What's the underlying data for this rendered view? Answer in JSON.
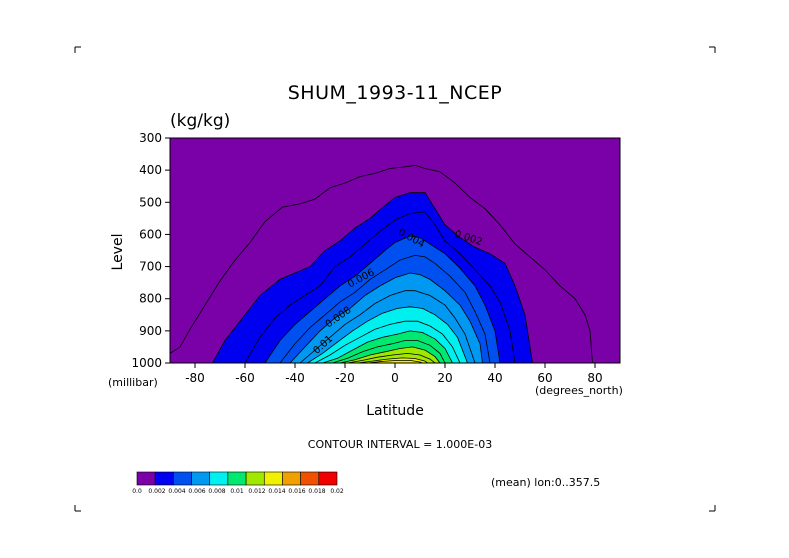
{
  "chart_data": {
    "type": "contour",
    "title": "SHUM_1993-11_NCEP",
    "units": "(kg/kg)",
    "xlabel": "Latitude",
    "ylabel": "Level",
    "x_unit_label": "(degrees_north)",
    "y_unit_label": "(millibar)",
    "xlim": [
      -90,
      90
    ],
    "ylim": [
      1000,
      300
    ],
    "x_ticks": [
      -80,
      -60,
      -40,
      -20,
      0,
      20,
      40,
      60,
      80
    ],
    "y_ticks": [
      300,
      400,
      500,
      600,
      700,
      800,
      900,
      1000
    ],
    "contour_interval_text": "CONTOUR INTERVAL = 1.000E-03",
    "mean_text": "(mean) lon:0..357.5",
    "colorbar": {
      "labels": [
        "0.0",
        "0.002",
        "0.004",
        "0.006",
        "0.008",
        "0.01",
        "0.012",
        "0.014",
        "0.016",
        "0.018",
        "0.02"
      ],
      "colors": [
        "#7a00a8",
        "#0000f0",
        "#0050f0",
        "#0098f0",
        "#00f0f0",
        "#00e870",
        "#a0e800",
        "#f0f000",
        "#f0a000",
        "#f05000",
        "#f00000"
      ]
    },
    "contour_labels": [
      "0.002",
      "0.004",
      "0.006",
      "0.008",
      "0.01"
    ],
    "contours": [
      {
        "level": 0.001,
        "points": [
          [
            -90,
            970
          ],
          [
            -86,
            950
          ],
          [
            -82,
            895
          ],
          [
            -76,
            820
          ],
          [
            -70,
            745
          ],
          [
            -64,
            680
          ],
          [
            -58,
            625
          ],
          [
            -52,
            560
          ],
          [
            -45,
            515
          ],
          [
            -38,
            505
          ],
          [
            -32,
            490
          ],
          [
            -26,
            455
          ],
          [
            -20,
            440
          ],
          [
            -14,
            420
          ],
          [
            -8,
            410
          ],
          [
            -2,
            395
          ],
          [
            4,
            390
          ],
          [
            8,
            385
          ],
          [
            12,
            395
          ],
          [
            18,
            405
          ],
          [
            24,
            440
          ],
          [
            30,
            485
          ],
          [
            36,
            520
          ],
          [
            42,
            570
          ],
          [
            48,
            630
          ],
          [
            54,
            670
          ],
          [
            60,
            710
          ],
          [
            66,
            760
          ],
          [
            72,
            800
          ],
          [
            76,
            850
          ],
          [
            78,
            900
          ],
          [
            79,
            1000
          ]
        ]
      },
      {
        "level": 0.002,
        "points": [
          [
            -73,
            1000
          ],
          [
            -68,
            930
          ],
          [
            -60,
            850
          ],
          [
            -54,
            790
          ],
          [
            -46,
            740
          ],
          [
            -40,
            720
          ],
          [
            -34,
            700
          ],
          [
            -28,
            650
          ],
          [
            -22,
            620
          ],
          [
            -16,
            580
          ],
          [
            -10,
            550
          ],
          [
            -4,
            510
          ],
          [
            0,
            485
          ],
          [
            6,
            470
          ],
          [
            12,
            470
          ],
          [
            16,
            520
          ],
          [
            20,
            570
          ],
          [
            26,
            610
          ],
          [
            32,
            640
          ],
          [
            38,
            660
          ],
          [
            44,
            690
          ],
          [
            48,
            760
          ],
          [
            52,
            850
          ],
          [
            54,
            950
          ],
          [
            55,
            1000
          ]
        ]
      },
      {
        "level": 0.003,
        "points": [
          [
            -60,
            1000
          ],
          [
            -54,
            920
          ],
          [
            -48,
            860
          ],
          [
            -42,
            820
          ],
          [
            -36,
            790
          ],
          [
            -30,
            760
          ],
          [
            -24,
            700
          ],
          [
            -18,
            670
          ],
          [
            -12,
            630
          ],
          [
            -6,
            590
          ],
          [
            0,
            555
          ],
          [
            6,
            535
          ],
          [
            12,
            530
          ],
          [
            16,
            570
          ],
          [
            20,
            620
          ],
          [
            26,
            660
          ],
          [
            32,
            710
          ],
          [
            38,
            760
          ],
          [
            42,
            810
          ],
          [
            46,
            900
          ],
          [
            48,
            1000
          ]
        ]
      },
      {
        "level": 0.004,
        "points": [
          [
            -52,
            1000
          ],
          [
            -46,
            930
          ],
          [
            -40,
            880
          ],
          [
            -34,
            840
          ],
          [
            -28,
            800
          ],
          [
            -22,
            760
          ],
          [
            -16,
            730
          ],
          [
            -10,
            690
          ],
          [
            -4,
            650
          ],
          [
            0,
            625
          ],
          [
            6,
            605
          ],
          [
            10,
            610
          ],
          [
            14,
            630
          ],
          [
            20,
            660
          ],
          [
            26,
            705
          ],
          [
            32,
            760
          ],
          [
            36,
            820
          ],
          [
            40,
            900
          ],
          [
            42,
            1000
          ]
        ]
      },
      {
        "level": 0.005,
        "points": [
          [
            -46,
            1000
          ],
          [
            -40,
            940
          ],
          [
            -34,
            890
          ],
          [
            -28,
            850
          ],
          [
            -22,
            810
          ],
          [
            -16,
            780
          ],
          [
            -10,
            740
          ],
          [
            -4,
            710
          ],
          [
            2,
            680
          ],
          [
            8,
            665
          ],
          [
            12,
            670
          ],
          [
            16,
            690
          ],
          [
            22,
            730
          ],
          [
            28,
            780
          ],
          [
            32,
            840
          ],
          [
            36,
            910
          ],
          [
            38,
            1000
          ]
        ]
      },
      {
        "level": 0.006,
        "points": [
          [
            -42,
            1000
          ],
          [
            -36,
            950
          ],
          [
            -30,
            900
          ],
          [
            -24,
            860
          ],
          [
            -18,
            830
          ],
          [
            -12,
            790
          ],
          [
            -6,
            760
          ],
          [
            0,
            735
          ],
          [
            6,
            720
          ],
          [
            10,
            725
          ],
          [
            14,
            740
          ],
          [
            20,
            775
          ],
          [
            26,
            820
          ],
          [
            30,
            870
          ],
          [
            34,
            940
          ],
          [
            35,
            1000
          ]
        ]
      },
      {
        "level": 0.007,
        "points": [
          [
            -38,
            1000
          ],
          [
            -32,
            960
          ],
          [
            -26,
            920
          ],
          [
            -20,
            880
          ],
          [
            -14,
            850
          ],
          [
            -8,
            815
          ],
          [
            -2,
            790
          ],
          [
            4,
            775
          ],
          [
            8,
            775
          ],
          [
            14,
            790
          ],
          [
            20,
            820
          ],
          [
            24,
            860
          ],
          [
            28,
            910
          ],
          [
            32,
            1000
          ]
        ]
      },
      {
        "level": 0.008,
        "points": [
          [
            -35,
            1000
          ],
          [
            -29,
            970
          ],
          [
            -23,
            935
          ],
          [
            -17,
            900
          ],
          [
            -11,
            870
          ],
          [
            -5,
            845
          ],
          [
            1,
            830
          ],
          [
            6,
            825
          ],
          [
            11,
            830
          ],
          [
            16,
            850
          ],
          [
            21,
            880
          ],
          [
            25,
            920
          ],
          [
            29,
            1000
          ]
        ]
      },
      {
        "level": 0.009,
        "points": [
          [
            -32,
            1000
          ],
          [
            -26,
            975
          ],
          [
            -20,
            945
          ],
          [
            -14,
            920
          ],
          [
            -8,
            895
          ],
          [
            -2,
            880
          ],
          [
            4,
            870
          ],
          [
            9,
            870
          ],
          [
            14,
            885
          ],
          [
            19,
            910
          ],
          [
            23,
            950
          ],
          [
            26,
            1000
          ]
        ]
      },
      {
        "level": 0.01,
        "points": [
          [
            -29,
            1000
          ],
          [
            -23,
            985
          ],
          [
            -17,
            960
          ],
          [
            -11,
            935
          ],
          [
            -5,
            920
          ],
          [
            1,
            910
          ],
          [
            6,
            900
          ],
          [
            11,
            905
          ],
          [
            16,
            925
          ],
          [
            20,
            955
          ],
          [
            23,
            1000
          ]
        ]
      },
      {
        "level": 0.011,
        "points": [
          [
            -25,
            1000
          ],
          [
            -19,
            985
          ],
          [
            -13,
            965
          ],
          [
            -7,
            950
          ],
          [
            -1,
            940
          ],
          [
            4,
            930
          ],
          [
            9,
            930
          ],
          [
            14,
            945
          ],
          [
            18,
            970
          ],
          [
            20,
            1000
          ]
        ]
      },
      {
        "level": 0.012,
        "points": [
          [
            -22,
            1000
          ],
          [
            -16,
            990
          ],
          [
            -10,
            975
          ],
          [
            -4,
            965
          ],
          [
            2,
            955
          ],
          [
            7,
            950
          ],
          [
            12,
            960
          ],
          [
            16,
            980
          ],
          [
            18,
            1000
          ]
        ]
      },
      {
        "level": 0.013,
        "points": [
          [
            -19,
            1000
          ],
          [
            -13,
            992
          ],
          [
            -7,
            982
          ],
          [
            -1,
            975
          ],
          [
            5,
            970
          ],
          [
            10,
            975
          ],
          [
            14,
            988
          ],
          [
            16,
            1000
          ]
        ]
      },
      {
        "level": 0.014,
        "points": [
          [
            -15,
            1000
          ],
          [
            -9,
            994
          ],
          [
            -3,
            988
          ],
          [
            3,
            984
          ],
          [
            8,
            986
          ],
          [
            12,
            994
          ],
          [
            13,
            1000
          ]
        ]
      },
      {
        "level": 0.015,
        "points": [
          [
            -11,
            1000
          ],
          [
            -5,
            995
          ],
          [
            1,
            992
          ],
          [
            6,
            992
          ],
          [
            10,
            997
          ],
          [
            11,
            1000
          ]
        ]
      }
    ]
  }
}
